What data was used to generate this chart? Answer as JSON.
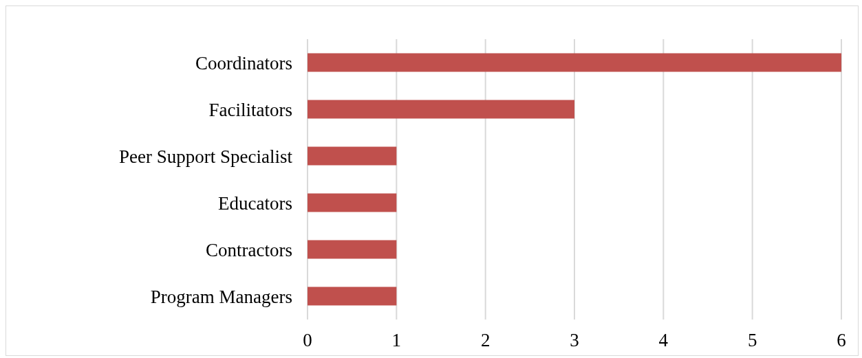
{
  "chart_data": {
    "type": "bar",
    "orientation": "horizontal",
    "categories": [
      "Coordinators",
      "Facilitators",
      "Peer Support Specialist",
      "Educators",
      "Contractors",
      "Program Managers"
    ],
    "values": [
      6,
      3,
      1,
      1,
      1,
      1
    ],
    "color": "#c0504d",
    "xlim": [
      0,
      6
    ],
    "xticks": [
      0,
      1,
      2,
      3,
      4,
      5,
      6
    ],
    "grid": "x"
  }
}
